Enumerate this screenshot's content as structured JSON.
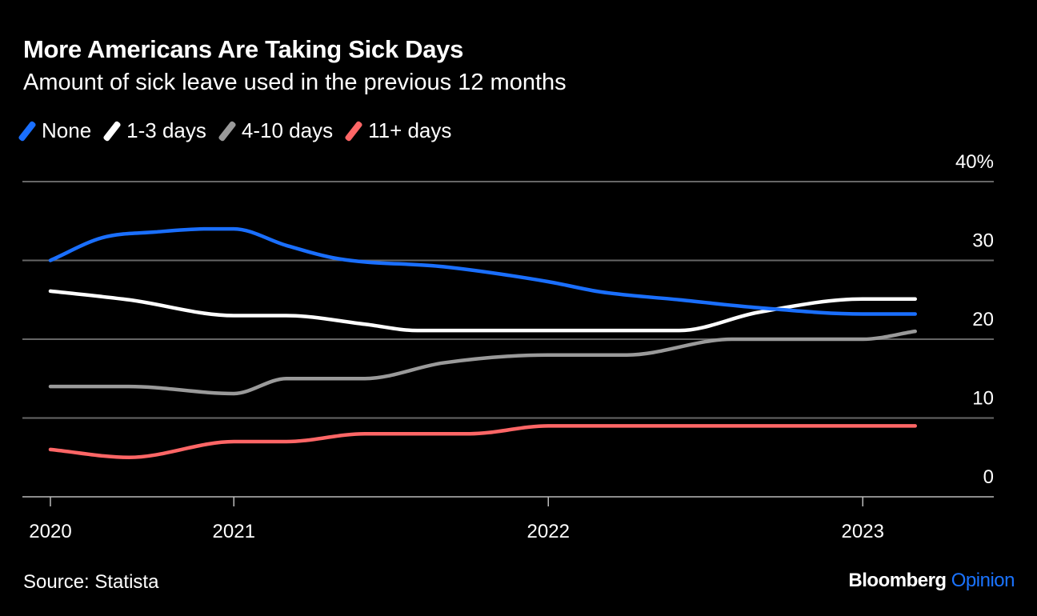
{
  "chart_data": {
    "type": "line",
    "title": "More Americans Are Taking Sick Days",
    "subtitle": "Amount of sick leave used in the previous 12 months",
    "source": "Source: Statista",
    "logo": {
      "brand": "Bloomberg",
      "section": "Opinion"
    },
    "xlim": [
      "2020-05",
      "2023-06"
    ],
    "ylim": [
      0,
      40
    ],
    "y_ticks": [
      {
        "value": 0,
        "label": "0"
      },
      {
        "value": 10,
        "label": "10"
      },
      {
        "value": 20,
        "label": "20"
      },
      {
        "value": 30,
        "label": "30"
      },
      {
        "value": 40,
        "label": "40%"
      }
    ],
    "x_ticks": [
      {
        "date": "2020-06",
        "label": "2020"
      },
      {
        "date": "2021-01",
        "label": "2021"
      },
      {
        "date": "2022-01",
        "label": "2022"
      },
      {
        "date": "2023-01",
        "label": "2023"
      }
    ],
    "grid": true,
    "legend_position": "top-left",
    "series": [
      {
        "name": "None",
        "color": "#1a6fff",
        "points": [
          [
            "2020-06",
            30
          ],
          [
            "2020-08",
            32.9
          ],
          [
            "2020-10",
            33.6
          ],
          [
            "2020-12",
            34
          ],
          [
            "2021-01",
            34
          ],
          [
            "2021-03",
            31.9
          ],
          [
            "2021-05",
            30.2
          ],
          [
            "2021-09",
            29.2
          ],
          [
            "2022-01",
            27.3
          ],
          [
            "2022-03",
            26
          ],
          [
            "2022-06",
            25
          ],
          [
            "2022-09",
            24
          ],
          [
            "2023-01",
            23.2
          ],
          [
            "2023-03",
            23.2
          ]
        ]
      },
      {
        "name": "1-3 days",
        "color": "#ffffff",
        "points": [
          [
            "2020-06",
            26.1
          ],
          [
            "2020-09",
            25
          ],
          [
            "2021-01",
            23
          ],
          [
            "2021-03",
            23
          ],
          [
            "2021-06",
            21.9
          ],
          [
            "2021-08",
            21.1
          ],
          [
            "2022-06",
            21.1
          ],
          [
            "2022-09",
            23.4
          ],
          [
            "2023-01",
            25.1
          ],
          [
            "2023-03",
            25.1
          ]
        ]
      },
      {
        "name": "4-10 days",
        "color": "#9a9a9a",
        "points": [
          [
            "2020-06",
            14
          ],
          [
            "2020-09",
            14
          ],
          [
            "2021-01",
            13.1
          ],
          [
            "2021-03",
            15
          ],
          [
            "2021-06",
            15
          ],
          [
            "2021-09",
            17
          ],
          [
            "2022-01",
            18
          ],
          [
            "2022-04",
            18
          ],
          [
            "2022-08",
            20
          ],
          [
            "2023-01",
            20
          ],
          [
            "2023-03",
            21
          ]
        ]
      },
      {
        "name": "11+ days",
        "color": "#ff6666",
        "points": [
          [
            "2020-06",
            6
          ],
          [
            "2020-09",
            5
          ],
          [
            "2021-01",
            7
          ],
          [
            "2021-03",
            7
          ],
          [
            "2021-06",
            8
          ],
          [
            "2021-10",
            8
          ],
          [
            "2022-01",
            9
          ],
          [
            "2023-03",
            9
          ]
        ]
      }
    ]
  }
}
